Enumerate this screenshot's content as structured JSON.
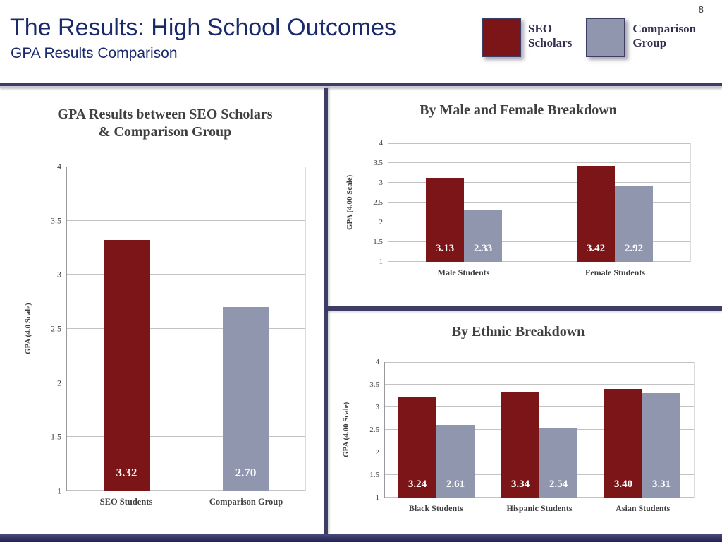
{
  "page_number": "8",
  "header": {
    "title": "The Results: High School Outcomes",
    "subtitle": "GPA Results Comparison"
  },
  "legend": {
    "items": [
      {
        "label": "SEO\nScholars",
        "series": "SEO Scholars",
        "color": "#7b1517"
      },
      {
        "label": "Comparison\nGroup",
        "series": "Comparison Group",
        "color": "#9096ae"
      }
    ]
  },
  "series_colors": {
    "SEO Scholars": "#7b1517",
    "Comparison Group": "#9096ae"
  },
  "colors": {
    "accent_navy": "#3d3d66",
    "title_navy": "#1a296b",
    "chart_text": "#3f3f3f"
  },
  "chart_data": [
    {
      "type": "bar",
      "title": "GPA Results between SEO Scholars\n& Comparison Group",
      "ylabel": "GPA (4.0 Scale)",
      "ylim": [
        1,
        4
      ],
      "ytick_step": 0.5,
      "grid": true,
      "legend_position": "none",
      "groups": [
        {
          "label": "SEO Students",
          "bars": [
            {
              "series": "SEO Scholars",
              "value": 3.32,
              "label": "3.32"
            }
          ]
        },
        {
          "label": "Comparison Group",
          "bars": [
            {
              "series": "Comparison Group",
              "value": 2.7,
              "label": "2.70"
            }
          ]
        }
      ]
    },
    {
      "type": "bar",
      "title": "By Male and Female Breakdown",
      "ylabel": "GPA (4.00 Scale)",
      "ylim": [
        1,
        4
      ],
      "ytick_step": 0.5,
      "grid": true,
      "legend_position": "none",
      "groups": [
        {
          "label": "Male Students",
          "bars": [
            {
              "series": "SEO Scholars",
              "value": 3.13,
              "label": "3.13"
            },
            {
              "series": "Comparison Group",
              "value": 2.33,
              "label": "2.33"
            }
          ]
        },
        {
          "label": "Female Students",
          "bars": [
            {
              "series": "SEO Scholars",
              "value": 3.42,
              "label": "3.42"
            },
            {
              "series": "Comparison Group",
              "value": 2.92,
              "label": "2.92"
            }
          ]
        }
      ]
    },
    {
      "type": "bar",
      "title": "By Ethnic Breakdown",
      "ylabel": "GPA (4.00 Scale)",
      "ylim": [
        1,
        4
      ],
      "ytick_step": 0.5,
      "grid": true,
      "legend_position": "none",
      "groups": [
        {
          "label": "Black Students",
          "bars": [
            {
              "series": "SEO Scholars",
              "value": 3.24,
              "label": "3.24"
            },
            {
              "series": "Comparison Group",
              "value": 2.61,
              "label": "2.61"
            }
          ]
        },
        {
          "label": "Hispanic Students",
          "bars": [
            {
              "series": "SEO Scholars",
              "value": 3.34,
              "label": "3.34"
            },
            {
              "series": "Comparison Group",
              "value": 2.54,
              "label": "2.54"
            }
          ]
        },
        {
          "label": "Asian Students",
          "bars": [
            {
              "series": "SEO Scholars",
              "value": 3.4,
              "label": "3.40"
            },
            {
              "series": "Comparison Group",
              "value": 3.31,
              "label": "3.31"
            }
          ]
        }
      ]
    }
  ]
}
